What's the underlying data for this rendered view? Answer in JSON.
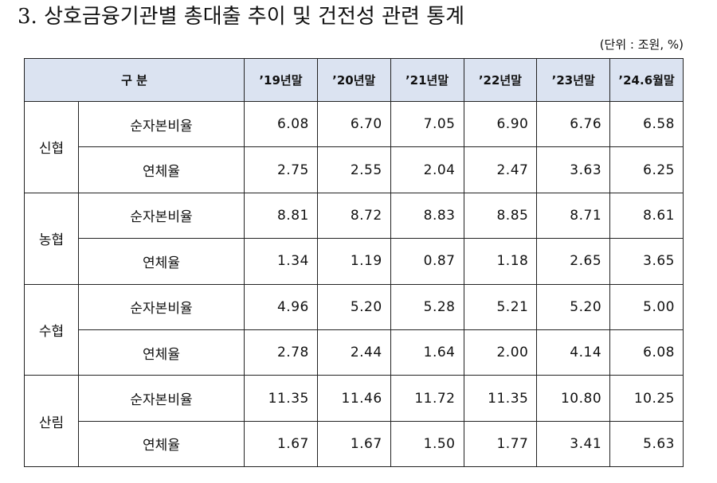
{
  "title": "3. 상호금융기관별 총대출 추이 및 건전성 관련 통계",
  "unit": "(단위 : 조원, %)",
  "table": {
    "header": [
      "구 분",
      "’19년말",
      "’20년말",
      "’21년말",
      "’22년말",
      "’23년말",
      "’24.6월말"
    ],
    "groups": [
      {
        "name": "신협",
        "rows": [
          {
            "label": "순자본비율",
            "values": [
              "6.08",
              "6.70",
              "7.05",
              "6.90",
              "6.76",
              "6.58"
            ]
          },
          {
            "label": "연체율",
            "values": [
              "2.75",
              "2.55",
              "2.04",
              "2.47",
              "3.63",
              "6.25"
            ]
          }
        ]
      },
      {
        "name": "농협",
        "rows": [
          {
            "label": "순자본비율",
            "values": [
              "8.81",
              "8.72",
              "8.83",
              "8.85",
              "8.71",
              "8.61"
            ]
          },
          {
            "label": "연체율",
            "values": [
              "1.34",
              "1.19",
              "0.87",
              "1.18",
              "2.65",
              "3.65"
            ]
          }
        ]
      },
      {
        "name": "수협",
        "rows": [
          {
            "label": "순자본비율",
            "values": [
              "4.96",
              "5.20",
              "5.28",
              "5.21",
              "5.20",
              "5.00"
            ]
          },
          {
            "label": "연체율",
            "values": [
              "2.78",
              "2.44",
              "1.64",
              "2.00",
              "4.14",
              "6.08"
            ]
          }
        ]
      },
      {
        "name": "산림",
        "rows": [
          {
            "label": "순자본비율",
            "values": [
              "11.35",
              "11.46",
              "11.72",
              "11.35",
              "10.80",
              "10.25"
            ]
          },
          {
            "label": "연체율",
            "values": [
              "1.67",
              "1.67",
              "1.50",
              "1.77",
              "3.41",
              "5.63"
            ]
          }
        ]
      }
    ]
  }
}
